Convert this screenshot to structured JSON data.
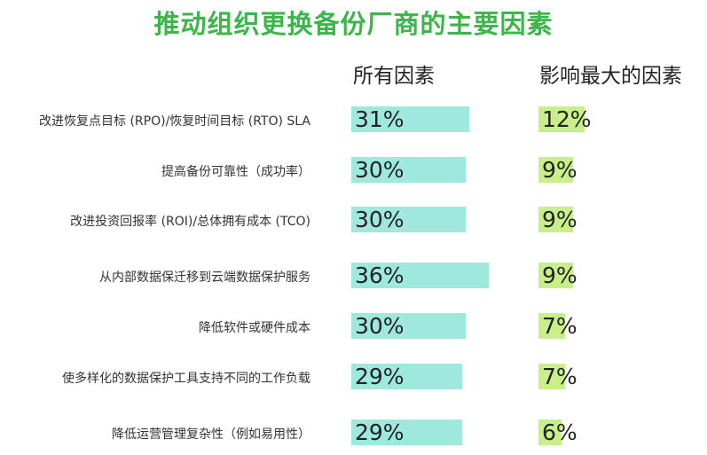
{
  "title": "推动组织更换备份厂商的主要因素",
  "columns": {
    "all": "所有因素",
    "top": "影响最大的因素"
  },
  "colors": {
    "title": "#3cb54a",
    "all_bar": "#9ee8dd",
    "top_bar": "#c8ef8a"
  },
  "chart_data": {
    "type": "bar",
    "orientation": "horizontal",
    "title": "推动组织更换备份厂商的主要因素",
    "categories": [
      "改进恢复点目标 (RPO)/恢复时间目标 (RTO) SLA",
      "提高备份可靠性（成功率）",
      "改进投资回报率 (ROI)/总体拥有成本 (TCO)",
      "从内部数据保迁移到云端数据保护服务",
      "降低软件或硬件成本",
      "使多样化的数据保护工具支持不同的工作负载",
      "降低运营管理复杂性（例如易用性）"
    ],
    "series": [
      {
        "name": "所有因素",
        "values": [
          31,
          30,
          30,
          36,
          30,
          29,
          29
        ],
        "labels": [
          "31%",
          "30%",
          "30%",
          "36%",
          "30%",
          "29%",
          "29%"
        ]
      },
      {
        "name": "影响最大的因素",
        "values": [
          12,
          9,
          9,
          9,
          7,
          7,
          6
        ],
        "labels": [
          "12%",
          "9%",
          "9%",
          "9%",
          "7%",
          "7%",
          "6%"
        ]
      }
    ],
    "grid": false,
    "legend": "top"
  }
}
